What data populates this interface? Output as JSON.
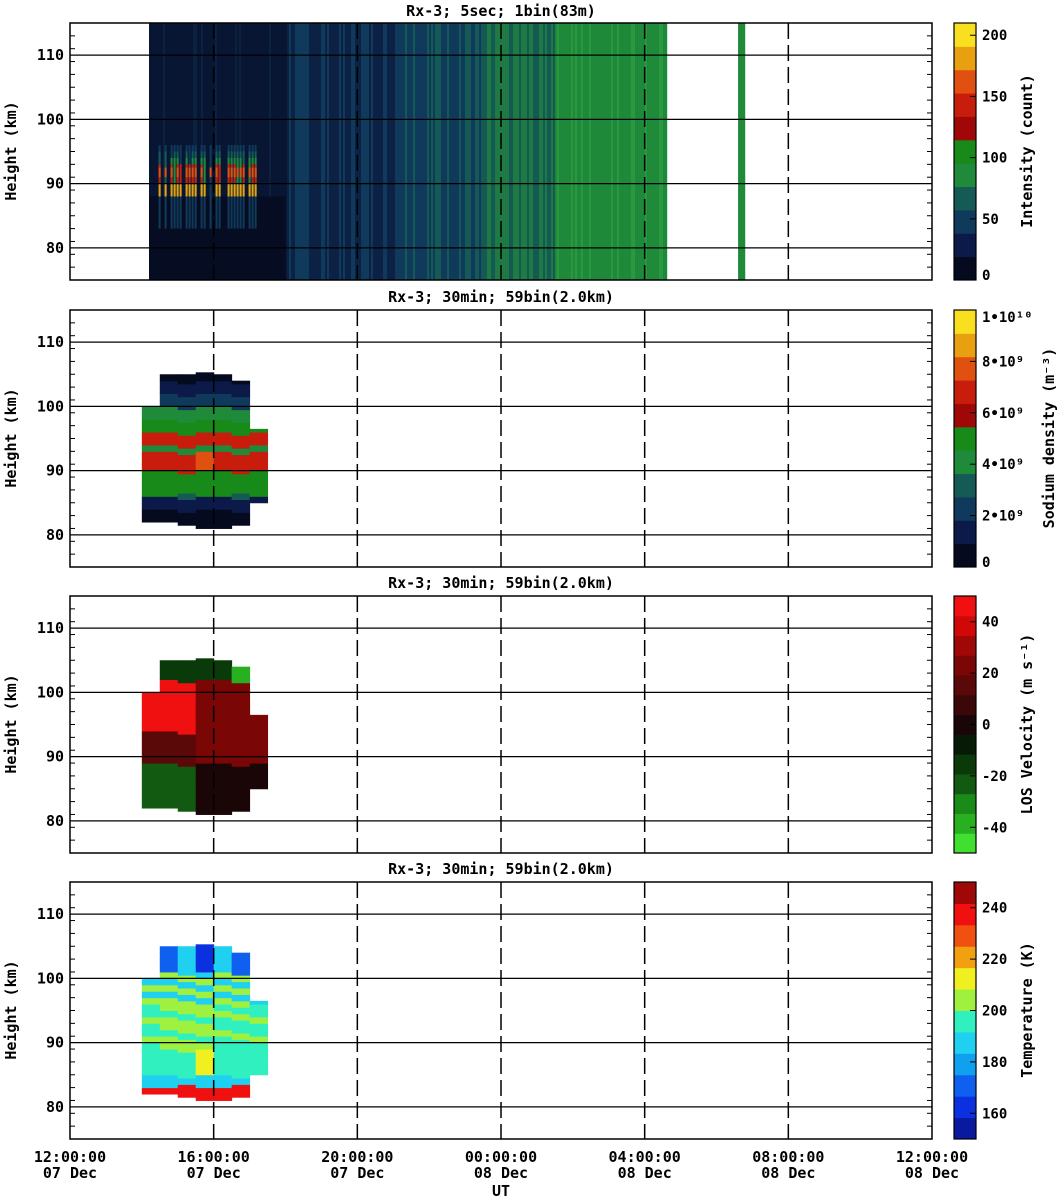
{
  "chart_data": [
    {
      "type": "heatmap",
      "title": "Rx-3;  5sec; 1bin(83m)",
      "ylabel": "Height (km)",
      "xlabel": "",
      "ylim": [
        75,
        115
      ],
      "yticks": [
        80,
        90,
        100,
        110
      ],
      "colorbar": {
        "label": "Intensity (count)",
        "ticks": [
          "0",
          "50",
          "100",
          "150",
          "200"
        ],
        "min": 0,
        "max": 210,
        "colors": [
          "#050a1e",
          "#0c1a4a",
          "#103a5c",
          "#155a55",
          "#1f8a3a",
          "#178a1a",
          "#a00808",
          "#c81c0c",
          "#e05010",
          "#e8a010",
          "#f8e020"
        ]
      }
    },
    {
      "type": "heatmap",
      "title": "Rx-3; 30min; 59bin(2.0km)",
      "ylabel": "Height (km)",
      "xlabel": "",
      "ylim": [
        75,
        115
      ],
      "yticks": [
        80,
        90,
        100,
        110
      ],
      "colorbar": {
        "label": "Sodium density (m⁻³)",
        "ticks": [
          "0",
          "2•10⁹",
          "4•10⁹",
          "6•10⁹",
          "8•10⁹",
          "1•10¹⁰"
        ],
        "min": 0,
        "max": 10,
        "colors": [
          "#050a1e",
          "#0c1a4a",
          "#103a5c",
          "#155a55",
          "#1f8a3a",
          "#178a1a",
          "#a00808",
          "#c81c0c",
          "#e05010",
          "#e8a010",
          "#f8e020"
        ]
      }
    },
    {
      "type": "heatmap",
      "title": "Rx-3; 30min; 59bin(2.0km)",
      "ylabel": "Height (km)",
      "xlabel": "",
      "ylim": [
        75,
        115
      ],
      "yticks": [
        80,
        90,
        100,
        110
      ],
      "colorbar": {
        "label": "LOS Velocity (m s⁻¹)",
        "ticks": [
          "-40",
          "-20",
          "0",
          "20",
          "40"
        ],
        "min": -50,
        "max": 50,
        "colors": [
          "#40e030",
          "#28b020",
          "#1a8a18",
          "#125a12",
          "#0a3a0a",
          "#061a06",
          "#1a0606",
          "#3a0808",
          "#5a0808",
          "#7a0606",
          "#a00808",
          "#d00808",
          "#f01010"
        ]
      }
    },
    {
      "type": "heatmap",
      "title": "Rx-3; 30min; 59bin(2.0km)",
      "ylabel": "Height (km)",
      "xlabel": "UT",
      "ylim": [
        75,
        115
      ],
      "yticks": [
        80,
        90,
        100,
        110
      ],
      "xticks": [
        {
          "time": "12:00:00",
          "date": "07 Dec"
        },
        {
          "time": "16:00:00",
          "date": "07 Dec"
        },
        {
          "time": "20:00:00",
          "date": "07 Dec"
        },
        {
          "time": "00:00:00",
          "date": "08 Dec"
        },
        {
          "time": "04:00:00",
          "date": "08 Dec"
        },
        {
          "time": "08:00:00",
          "date": "08 Dec"
        },
        {
          "time": "12:00:00",
          "date": "08 Dec"
        }
      ],
      "colorbar": {
        "label": "Temperature (K)",
        "ticks": [
          "160",
          "180",
          "200",
          "220",
          "240"
        ],
        "min": 150,
        "max": 250,
        "colors": [
          "#0a1aa0",
          "#0a30e0",
          "#1060f0",
          "#10a0f0",
          "#20d0f0",
          "#30f0c0",
          "#a0f040",
          "#f0f020",
          "#f0a010",
          "#f05010",
          "#f01010",
          "#a00808"
        ]
      }
    }
  ],
  "grid": {
    "hours_from_start": [
      0,
      4,
      8,
      12,
      16,
      20,
      24
    ],
    "span_hours": 24
  }
}
